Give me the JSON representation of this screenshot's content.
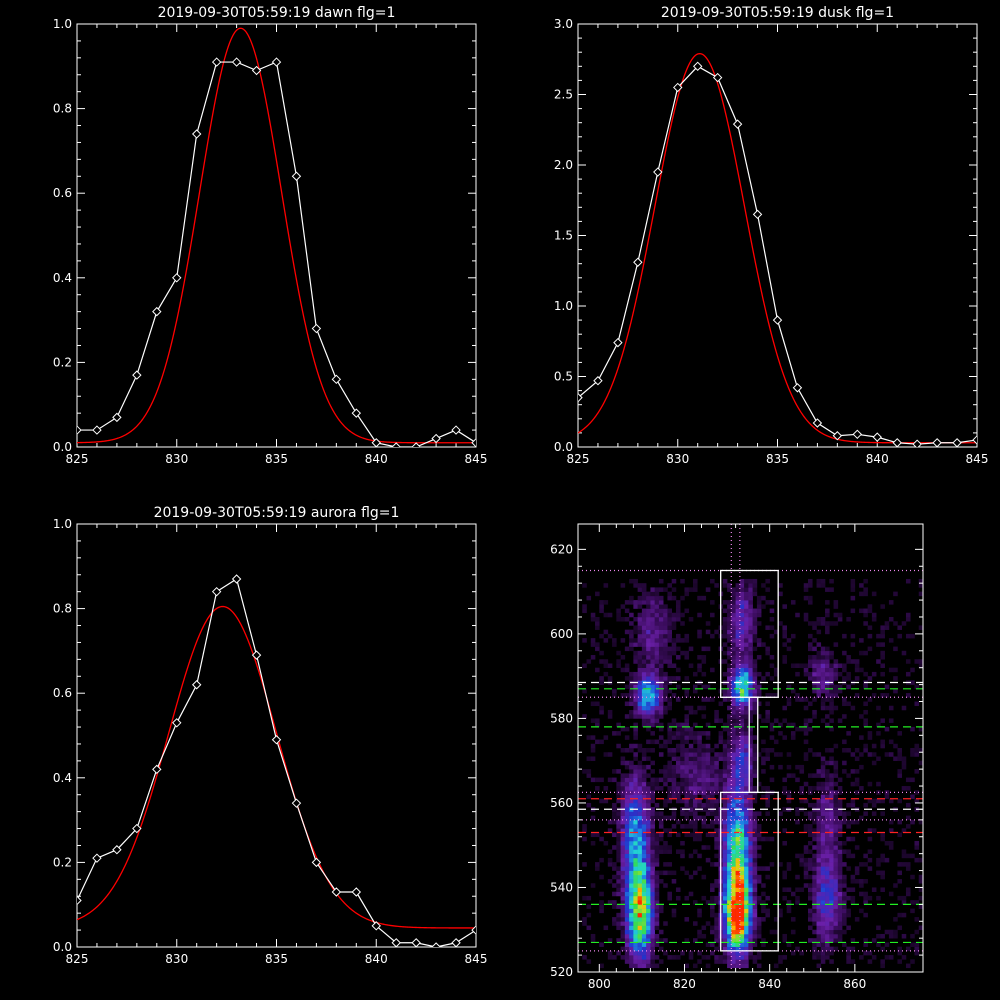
{
  "figure": {
    "background": "#000000",
    "foreground": "#ffffff"
  },
  "chart_data": [
    {
      "id": "dawn",
      "type": "line",
      "title": "2019-09-30T05:59:19 dawn flg=1",
      "xlabel": "",
      "ylabel": "",
      "xlim": [
        825,
        845
      ],
      "ylim": [
        0,
        1.0
      ],
      "xticks": [
        825,
        830,
        835,
        840,
        845
      ],
      "yticks": [
        0.0,
        0.2,
        0.4,
        0.6,
        0.8,
        1.0
      ],
      "grid": false,
      "series": [
        {
          "style": "data",
          "color": "#ffffff",
          "marker": "diamond",
          "x": [
            825,
            826,
            827,
            828,
            829,
            830,
            831,
            832,
            833,
            834,
            835,
            836,
            837,
            838,
            839,
            840,
            841,
            842,
            843,
            844,
            845
          ],
          "y": [
            0.04,
            0.04,
            0.07,
            0.17,
            0.32,
            0.4,
            0.74,
            0.91,
            0.91,
            0.89,
            0.91,
            0.64,
            0.28,
            0.16,
            0.08,
            0.01,
            0.0,
            0.0,
            0.02,
            0.04,
            0.01
          ]
        },
        {
          "style": "fit",
          "color": "#ff0000",
          "fit": {
            "amp": 0.98,
            "center": 833.2,
            "sigma": 2.05,
            "offset": 0.01
          }
        }
      ]
    },
    {
      "id": "dusk",
      "type": "line",
      "title": "2019-09-30T05:59:19 dusk flg=1",
      "xlabel": "",
      "ylabel": "",
      "xlim": [
        825,
        845
      ],
      "ylim": [
        0,
        3.0
      ],
      "xticks": [
        825,
        830,
        835,
        840,
        845
      ],
      "yticks": [
        0.0,
        0.5,
        1.0,
        1.5,
        2.0,
        2.5,
        3.0
      ],
      "grid": false,
      "series": [
        {
          "style": "data",
          "color": "#ffffff",
          "marker": "diamond",
          "x": [
            825,
            826,
            827,
            828,
            829,
            830,
            831,
            832,
            833,
            834,
            835,
            836,
            837,
            838,
            839,
            840,
            841,
            842,
            843,
            844,
            845
          ],
          "y": [
            0.35,
            0.47,
            0.74,
            1.31,
            1.95,
            2.55,
            2.7,
            2.62,
            2.29,
            1.65,
            0.9,
            0.42,
            0.17,
            0.08,
            0.09,
            0.07,
            0.03,
            0.02,
            0.03,
            0.03,
            0.05
          ]
        },
        {
          "style": "fit",
          "color": "#ff0000",
          "fit": {
            "amp": 2.76,
            "center": 831.1,
            "sigma": 2.25,
            "offset": 0.03
          }
        }
      ]
    },
    {
      "id": "aurora",
      "type": "line",
      "title": "2019-09-30T05:59:19 aurora flg=1",
      "xlabel": "",
      "ylabel": "",
      "xlim": [
        825,
        845
      ],
      "ylim": [
        0,
        1.0
      ],
      "xticks": [
        825,
        830,
        835,
        840,
        845
      ],
      "yticks": [
        0.0,
        0.2,
        0.4,
        0.6,
        0.8,
        1.0
      ],
      "grid": false,
      "series": [
        {
          "style": "data",
          "color": "#ffffff",
          "marker": "diamond",
          "x": [
            825,
            826,
            827,
            828,
            829,
            830,
            831,
            832,
            833,
            834,
            835,
            836,
            837,
            838,
            839,
            840,
            841,
            842,
            843,
            844,
            845
          ],
          "y": [
            0.11,
            0.21,
            0.23,
            0.28,
            0.42,
            0.53,
            0.62,
            0.84,
            0.87,
            0.69,
            0.49,
            0.34,
            0.2,
            0.13,
            0.13,
            0.05,
            0.01,
            0.01,
            0.0,
            0.01,
            0.04
          ]
        },
        {
          "style": "fit",
          "color": "#ff0000",
          "fit": {
            "amp": 0.76,
            "center": 832.3,
            "sigma": 2.7,
            "offset": 0.045
          }
        }
      ]
    },
    {
      "id": "image",
      "type": "heatmap",
      "title": "",
      "xlabel": "",
      "ylabel": "",
      "xlim": [
        795,
        876
      ],
      "ylim": [
        520,
        626
      ],
      "xticks": [
        800,
        820,
        840,
        860
      ],
      "yticks": [
        520,
        540,
        560,
        580,
        600,
        620
      ],
      "grid": false,
      "colormap": [
        "#000000",
        "#3a0c5c",
        "#6a1fa8",
        "#2233cc",
        "#1e88e6",
        "#22d4d4",
        "#33dd55",
        "#c8e020",
        "#ffb000",
        "#ff2a00"
      ],
      "sources": [
        {
          "x": 809,
          "y": 534,
          "sx": 2.0,
          "sy": 7.5,
          "amp": 0.78
        },
        {
          "x": 808,
          "y": 552,
          "sx": 2.2,
          "sy": 9.0,
          "amp": 0.42
        },
        {
          "x": 811,
          "y": 585,
          "sx": 2.0,
          "sy": 3.2,
          "amp": 0.55
        },
        {
          "x": 812,
          "y": 600,
          "sx": 3.0,
          "sy": 6.0,
          "amp": 0.16
        },
        {
          "x": 832,
          "y": 533,
          "sx": 2.0,
          "sy": 6.0,
          "amp": 1.0
        },
        {
          "x": 832,
          "y": 548,
          "sx": 2.1,
          "sy": 9.0,
          "amp": 0.65
        },
        {
          "x": 833,
          "y": 587,
          "sx": 1.8,
          "sy": 3.2,
          "amp": 0.62
        },
        {
          "x": 833,
          "y": 602,
          "sx": 2.0,
          "sy": 6.0,
          "amp": 0.25
        },
        {
          "x": 833,
          "y": 570,
          "sx": 1.7,
          "sy": 4.5,
          "amp": 0.28
        },
        {
          "x": 853,
          "y": 537,
          "sx": 2.3,
          "sy": 7.0,
          "amp": 0.28
        },
        {
          "x": 853,
          "y": 555,
          "sx": 2.0,
          "sy": 8.0,
          "amp": 0.16
        },
        {
          "x": 852,
          "y": 590,
          "sx": 2.2,
          "sy": 4.0,
          "amp": 0.18
        },
        {
          "x": 823,
          "y": 566,
          "sx": 5.0,
          "sy": 7.0,
          "amp": 0.12
        }
      ],
      "noise": 0.1,
      "overlays": {
        "boxes": [
          {
            "x0": 828.5,
            "x1": 842,
            "y0": 525,
            "y1": 562.5,
            "color": "#ffffff"
          },
          {
            "x0": 828.5,
            "x1": 842,
            "y0": 585,
            "y1": 615,
            "color": "#ffffff"
          },
          {
            "x0": 835.2,
            "x1": 837.2,
            "y0": 562.5,
            "y1": 585,
            "color": "#ffffff"
          }
        ],
        "hlines": [
          {
            "y": 615,
            "color": "#ee88ee",
            "dash": "1,3"
          },
          {
            "y": 588.5,
            "color": "#ffffff",
            "dash": "8,5"
          },
          {
            "y": 587,
            "color": "#22ee22",
            "dash": "8,5"
          },
          {
            "y": 585,
            "color": "#ee88ee",
            "dash": "1,3"
          },
          {
            "y": 578,
            "color": "#22ee22",
            "dash": "8,5"
          },
          {
            "y": 562.5,
            "color": "#ee88ee",
            "dash": "1,3"
          },
          {
            "y": 561,
            "color": "#ff2222",
            "dash": "8,5"
          },
          {
            "y": 558.5,
            "color": "#ffffff",
            "dash": "8,5"
          },
          {
            "y": 556,
            "color": "#ee88ee",
            "dash": "1,3"
          },
          {
            "y": 553,
            "color": "#ff2222",
            "dash": "8,5"
          },
          {
            "y": 536,
            "color": "#22ee22",
            "dash": "8,5"
          },
          {
            "y": 527,
            "color": "#22ee22",
            "dash": "8,5"
          },
          {
            "y": 525,
            "color": "#ee88ee",
            "dash": "1,3"
          }
        ],
        "vlines": [
          {
            "x": 831,
            "color": "#ee88ee",
            "dash": "1,3"
          },
          {
            "x": 833,
            "color": "#ee88ee",
            "dash": "1,3"
          }
        ]
      }
    }
  ]
}
